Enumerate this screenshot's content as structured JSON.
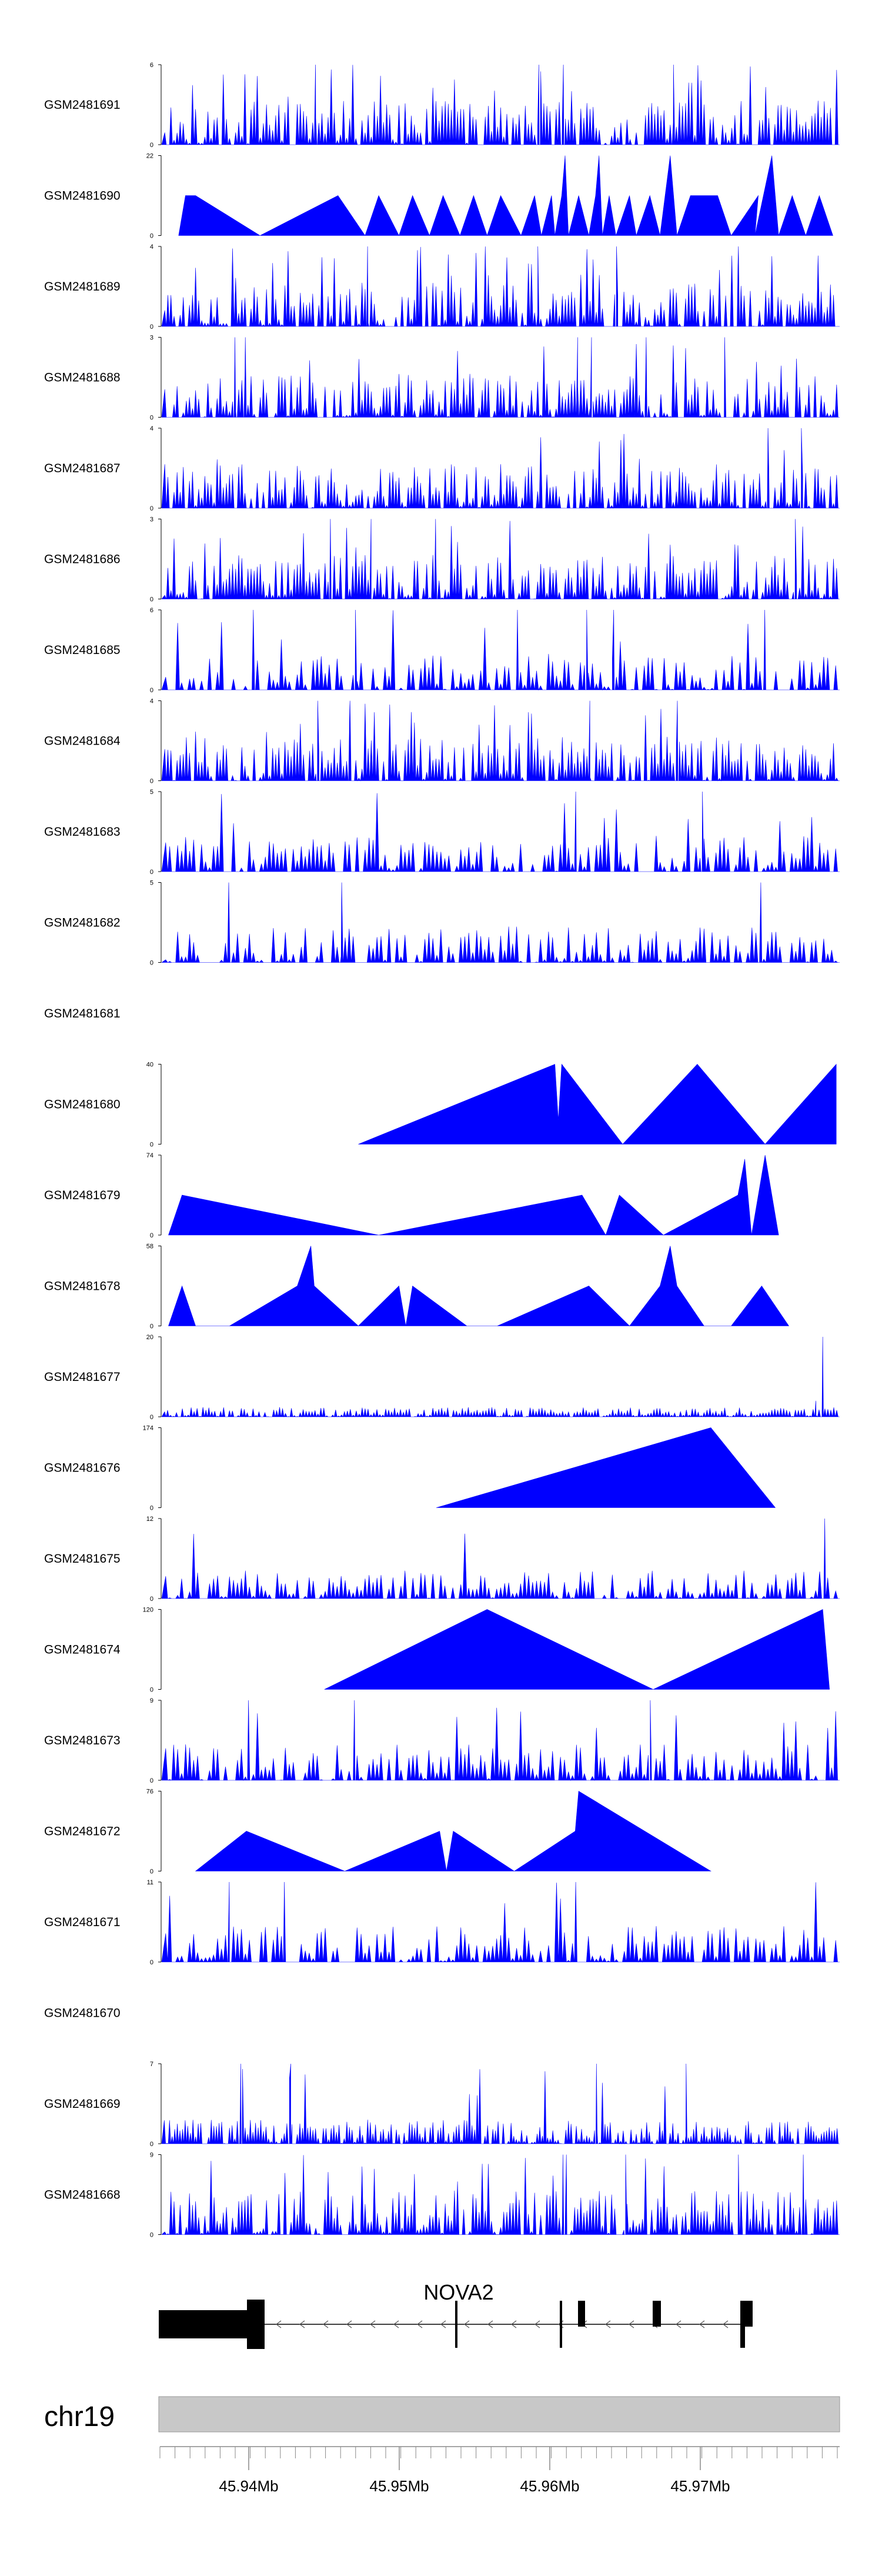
{
  "chart_data": {
    "type": "area",
    "xaxis_ticks": [
      "45.94Mb",
      "45.95Mb",
      "45.96Mb",
      "45.97Mb"
    ],
    "chromosome": "chr19",
    "gene": {
      "name": "NOVA2"
    },
    "colors": {
      "signal": "#0000ff",
      "gene": "#000000",
      "ideogram": "#c8c8c8"
    },
    "tracks": [
      {
        "name": "GSM2481691",
        "ymax": "6",
        "ymin": "0",
        "pattern": "dense",
        "seed": 11
      },
      {
        "name": "GSM2481690",
        "ymax": "22",
        "ymin": "0",
        "peaks": [
          [
            0.025,
            0
          ],
          [
            0.035,
            0.5
          ],
          [
            0.05,
            0.5
          ],
          [
            0.145,
            0
          ],
          [
            0.26,
            0.5
          ],
          [
            0.3,
            0
          ],
          [
            0.32,
            0.5
          ],
          [
            0.35,
            0
          ],
          [
            0.37,
            0.5
          ],
          [
            0.395,
            0
          ],
          [
            0.415,
            0.5
          ],
          [
            0.44,
            0
          ],
          [
            0.46,
            0.5
          ],
          [
            0.48,
            0
          ],
          [
            0.5,
            0.5
          ],
          [
            0.53,
            0
          ],
          [
            0.55,
            0.5
          ],
          [
            0.56,
            0
          ],
          [
            0.575,
            0.5
          ],
          [
            0.58,
            0
          ],
          [
            0.59,
            0.5
          ],
          [
            0.595,
            1.0
          ],
          [
            0.6,
            0
          ],
          [
            0.615,
            0.5
          ],
          [
            0.63,
            0
          ],
          [
            0.64,
            0.5
          ],
          [
            0.645,
            1.0
          ],
          [
            0.65,
            0
          ],
          [
            0.66,
            0.5
          ],
          [
            0.67,
            0
          ],
          [
            0.69,
            0.5
          ],
          [
            0.7,
            0
          ],
          [
            0.72,
            0.5
          ],
          [
            0.735,
            0
          ],
          [
            0.75,
            1.0
          ],
          [
            0.76,
            0
          ],
          [
            0.78,
            0.5
          ],
          [
            0.82,
            0.5
          ],
          [
            0.84,
            0
          ],
          [
            0.88,
            0.5
          ],
          [
            0.875,
            0
          ],
          [
            0.9,
            1.0
          ],
          [
            0.91,
            0
          ],
          [
            0.93,
            0.5
          ],
          [
            0.95,
            0
          ],
          [
            0.97,
            0.5
          ],
          [
            0.99,
            0
          ]
        ]
      },
      {
        "name": "GSM2481689",
        "ymax": "4",
        "ymin": "0",
        "pattern": "dense",
        "seed": 23
      },
      {
        "name": "GSM2481688",
        "ymax": "3",
        "ymin": "0",
        "pattern": "dense",
        "seed": 37
      },
      {
        "name": "GSM2481687",
        "ymax": "4",
        "ymin": "0",
        "pattern": "dense",
        "seed": 41
      },
      {
        "name": "GSM2481686",
        "ymax": "3",
        "ymin": "0",
        "pattern": "dense",
        "seed": 53
      },
      {
        "name": "GSM2481685",
        "ymax": "6",
        "ymin": "0",
        "pattern": "medium",
        "seed": 67
      },
      {
        "name": "GSM2481684",
        "ymax": "4",
        "ymin": "0",
        "pattern": "dense",
        "seed": 71
      },
      {
        "name": "GSM2481683",
        "ymax": "5",
        "ymin": "0",
        "pattern": "medium",
        "seed": 83
      },
      {
        "name": "GSM2481682",
        "ymax": "5",
        "ymin": "0",
        "pattern": "medium",
        "seed": 97
      },
      {
        "name": "GSM2481681",
        "ymax": "",
        "ymin": "",
        "pattern": "empty",
        "seed": 1
      },
      {
        "name": "GSM2481680",
        "ymax": "40",
        "ymin": "0",
        "peaks": [
          [
            0.29,
            0
          ],
          [
            0.58,
            1.0
          ],
          [
            0.585,
            0.3
          ],
          [
            0.59,
            1.0
          ],
          [
            0.68,
            0
          ],
          [
            0.79,
            1.0
          ],
          [
            0.89,
            0
          ],
          [
            0.995,
            1.0
          ],
          [
            0.995,
            0
          ]
        ]
      },
      {
        "name": "GSM2481679",
        "ymax": "74",
        "ymin": "0",
        "peaks": [
          [
            0.01,
            0
          ],
          [
            0.03,
            0.5
          ],
          [
            0.32,
            0
          ],
          [
            0.62,
            0.5
          ],
          [
            0.655,
            0
          ],
          [
            0.675,
            0.5
          ],
          [
            0.74,
            0
          ],
          [
            0.85,
            0.5
          ],
          [
            0.86,
            0.95
          ],
          [
            0.87,
            0
          ],
          [
            0.89,
            1.0
          ],
          [
            0.91,
            0
          ]
        ]
      },
      {
        "name": "GSM2481678",
        "ymax": "58",
        "ymin": "0",
        "peaks": [
          [
            0.01,
            0
          ],
          [
            0.03,
            0.5
          ],
          [
            0.05,
            0
          ],
          [
            0.1,
            0
          ],
          [
            0.2,
            0.5
          ],
          [
            0.22,
            1.0
          ],
          [
            0.225,
            0.5
          ],
          [
            0.29,
            0
          ],
          [
            0.35,
            0.5
          ],
          [
            0.36,
            0
          ],
          [
            0.37,
            0.5
          ],
          [
            0.45,
            0
          ],
          [
            0.495,
            0
          ],
          [
            0.63,
            0.5
          ],
          [
            0.69,
            0
          ],
          [
            0.735,
            0.5
          ],
          [
            0.75,
            1.0
          ],
          [
            0.76,
            0.5
          ],
          [
            0.8,
            0
          ],
          [
            0.84,
            0
          ],
          [
            0.885,
            0.5
          ],
          [
            0.925,
            0
          ]
        ]
      },
      {
        "name": "GSM2481677",
        "ymax": "20",
        "ymin": "0",
        "pattern": "sparse_spike",
        "seed": 113
      },
      {
        "name": "GSM2481676",
        "ymax": "174",
        "ymin": "0",
        "peaks": [
          [
            0.405,
            0
          ],
          [
            0.81,
            1.0
          ],
          [
            0.905,
            0
          ]
        ]
      },
      {
        "name": "GSM2481675",
        "ymax": "12",
        "ymin": "0",
        "pattern": "medium_spike",
        "seed": 127
      },
      {
        "name": "GSM2481674",
        "ymax": "120",
        "ymin": "0",
        "peaks": [
          [
            0.24,
            0
          ],
          [
            0.48,
            1.0
          ],
          [
            0.725,
            0
          ],
          [
            0.975,
            1.0
          ],
          [
            0.985,
            0
          ]
        ]
      },
      {
        "name": "GSM2481673",
        "ymax": "9",
        "ymin": "0",
        "pattern": "medium",
        "seed": 139
      },
      {
        "name": "GSM2481672",
        "ymax": "76",
        "ymin": "0",
        "peaks": [
          [
            0.05,
            0
          ],
          [
            0.125,
            0.5
          ],
          [
            0.27,
            0
          ],
          [
            0.41,
            0.5
          ],
          [
            0.42,
            0
          ],
          [
            0.43,
            0.5
          ],
          [
            0.52,
            0
          ],
          [
            0.61,
            0.5
          ],
          [
            0.615,
            1.0
          ],
          [
            0.81,
            0
          ]
        ]
      },
      {
        "name": "GSM2481671",
        "ymax": "11",
        "ymin": "0",
        "pattern": "medium",
        "seed": 149
      },
      {
        "name": "GSM2481670",
        "ymax": "",
        "ymin": "",
        "pattern": "empty",
        "seed": 2
      },
      {
        "name": "GSM2481669",
        "ymax": "7",
        "ymin": "0",
        "pattern": "low",
        "seed": 151
      },
      {
        "name": "GSM2481668",
        "ymax": "9",
        "ymin": "0",
        "pattern": "dense",
        "seed": 163
      }
    ]
  }
}
